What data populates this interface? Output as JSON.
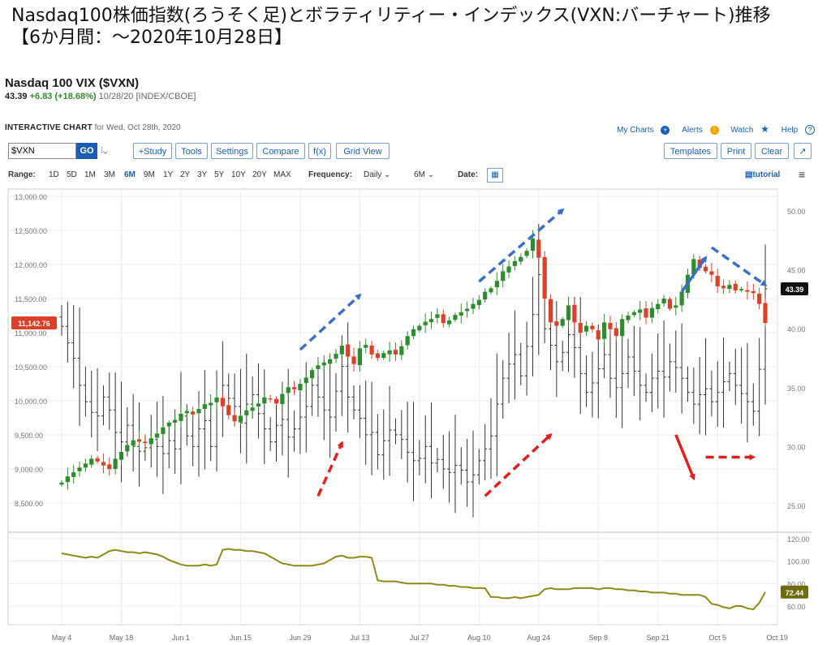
{
  "slide_title": {
    "line1": "Nasdaq100株価指数(ろうそく足)とボラティリティー・インデックス(VXN:バーチャート)推移",
    "line2": "【6か月間：～2020年10月28日】"
  },
  "header": {
    "symbol_title": "Nasdaq 100 VIX ($VXN)",
    "last": "43.39",
    "change": "+6.83 (+18.68%)",
    "meta": "10/28/20 [INDEX/CBOE]"
  },
  "chart_head": {
    "interactive_label": "INTERACTIVE CHART",
    "date_text": "for Wed, Oct 28th, 2020",
    "links": {
      "my_charts": "My Charts",
      "alerts": "Alerts",
      "watch": "Watch",
      "help": "Help"
    }
  },
  "toolbar": {
    "symbol_value": "$VXN",
    "go": "GO",
    "buttons": [
      "+Study",
      "Tools",
      "Settings",
      "Compare",
      "f(x)",
      "Grid View"
    ],
    "right_buttons": [
      "Templates",
      "Print",
      "Clear"
    ]
  },
  "rangebar": {
    "range_label": "Range:",
    "ranges": [
      "1D",
      "5D",
      "1M",
      "3M",
      "6M",
      "9M",
      "1Y",
      "2Y",
      "3Y",
      "5Y",
      "10Y",
      "20Y",
      "MAX"
    ],
    "selected_range": "6M",
    "frequency_label": "Frequency:",
    "frequency_value": "Daily",
    "period_value": "6M",
    "date_label": "Date:",
    "tutorial": "tutorial"
  },
  "colors": {
    "up": "#2e8b2e",
    "down": "#d9412b",
    "bar": "#333333",
    "lower_line": "#8a8a1a",
    "blue_arrow": "#3a6fc4",
    "red_arrow": "#e02020"
  },
  "chart_data": {
    "type": "candlestick",
    "title": "Nasdaq 100 VIX ($VXN)",
    "x_tick_labels": [
      "May 4",
      "May 18",
      "Jun 1",
      "Jun 15",
      "Jun 29",
      "Jul 13",
      "Jul 27",
      "Aug 10",
      "Aug 24",
      "Sep 8",
      "Sep 21",
      "Oct 5",
      "Oct 19"
    ],
    "left_axis": {
      "ticks": [
        8500,
        9000,
        9500,
        10000,
        10500,
        11000,
        11500,
        12000,
        12500,
        13000
      ],
      "ylim": [
        8500,
        13000
      ]
    },
    "right_axis": {
      "ticks": [
        25,
        30,
        35,
        40,
        45,
        50
      ],
      "ylim": [
        21.8,
        52.5
      ]
    },
    "lower_axis": {
      "ticks": [
        60,
        80,
        100,
        120
      ],
      "ylim": [
        55,
        125
      ]
    },
    "ndx_last_label": "11,142.76",
    "vxn_last_label": "43.39",
    "lower_last_label": "72.44",
    "ndx_close": [
      8800,
      8890,
      8950,
      9020,
      9080,
      9150,
      9110,
      9050,
      9000,
      9150,
      9250,
      9350,
      9420,
      9400,
      9380,
      9450,
      9520,
      9610,
      9680,
      9720,
      9810,
      9850,
      9800,
      9880,
      9950,
      9970,
      10050,
      9920,
      9790,
      9700,
      9780,
      9860,
      9900,
      9960,
      10050,
      10020,
      9960,
      10100,
      10200,
      10170,
      10250,
      10340,
      10450,
      10520,
      10560,
      10610,
      10690,
      10810,
      10650,
      10540,
      10770,
      10820,
      10680,
      10630,
      10700,
      10740,
      10680,
      10800,
      10950,
      11050,
      11100,
      11160,
      11200,
      11270,
      11140,
      11180,
      11260,
      11300,
      11350,
      11420,
      11480,
      11600,
      11650,
      11760,
      11900,
      11970,
      12050,
      12110,
      12200,
      12380,
      12100,
      11500,
      11150,
      11100,
      11200,
      11400,
      11150,
      11000,
      11100,
      11050,
      10900,
      11150,
      11050,
      10950,
      11200,
      11250,
      11300,
      11340,
      11220,
      11360,
      11420,
      11500,
      11350,
      11400,
      11600,
      11850,
      12080,
      11950,
      11900,
      11850,
      11680,
      11650,
      11700,
      11620,
      11640,
      11600,
      11580,
      11420,
      11142.76
    ],
    "vxn_close": [
      40.2,
      38.8,
      37.5,
      35.2,
      33.8,
      32.9,
      32.6,
      34.2,
      33.1,
      31.2,
      30.4,
      31.8,
      30.0,
      29.6,
      29.9,
      30.6,
      30.0,
      29.4,
      30.5,
      29.8,
      32.6,
      30.9,
      30.0,
      31.5,
      32.2,
      30.0,
      33.8,
      35.2,
      34.1,
      33.4,
      32.0,
      33.6,
      34.4,
      32.8,
      31.5,
      30.4,
      31.8,
      32.3,
      30.8,
      31.5,
      32.5,
      33.4,
      35.2,
      34.2,
      33.1,
      32.5,
      34.7,
      36.8,
      34.2,
      33.1,
      32.4,
      31.0,
      31.2,
      29.3,
      30.5,
      31.4,
      31.0,
      30.6,
      29.5,
      28.8,
      29.0,
      30.0,
      28.6,
      28.9,
      28.1,
      27.8,
      28.4,
      28.0,
      27.0,
      27.6,
      28.8,
      29.8,
      30.9,
      33.6,
      35.8,
      37.0,
      37.8,
      36.0,
      38.5,
      41.2,
      44.6,
      40.0,
      38.6,
      37.2,
      38.0,
      39.5,
      38.4,
      36.2,
      34.6,
      35.4,
      36.6,
      37.8,
      35.8,
      35.0,
      36.2,
      37.6,
      36.4,
      35.2,
      34.6,
      35.8,
      36.4,
      35.9,
      37.2,
      36.7,
      35.8,
      34.6,
      33.6,
      34.4,
      34.9,
      33.8,
      34.6,
      35.5,
      36.2,
      35.2,
      34.5,
      33.8,
      33.0,
      36.56,
      43.39
    ],
    "lower_series": [
      107,
      106,
      105,
      104,
      103,
      104,
      103,
      106,
      109,
      110,
      109,
      108,
      108,
      107,
      108,
      107,
      106,
      104,
      101,
      99,
      97,
      96,
      96,
      96,
      97,
      96,
      97,
      110,
      111,
      110,
      110,
      109,
      109,
      108,
      107,
      104,
      101,
      98,
      97,
      96,
      96,
      96,
      96,
      97,
      98,
      101,
      104,
      105,
      103,
      103,
      104,
      104,
      103,
      83,
      82,
      82,
      82,
      81,
      80,
      80,
      80,
      80,
      80,
      79,
      79,
      78,
      78,
      77,
      77,
      76,
      76,
      76,
      68,
      68,
      67,
      67,
      68,
      67,
      68,
      69,
      70,
      75,
      76,
      75,
      75,
      75,
      76,
      76,
      76,
      76,
      75,
      76,
      76,
      75,
      75,
      74,
      74,
      73,
      73,
      72,
      72,
      72,
      71,
      71,
      70,
      70,
      70,
      70,
      68,
      62,
      61,
      59,
      58,
      60,
      60,
      58,
      57,
      63,
      72.44
    ]
  }
}
